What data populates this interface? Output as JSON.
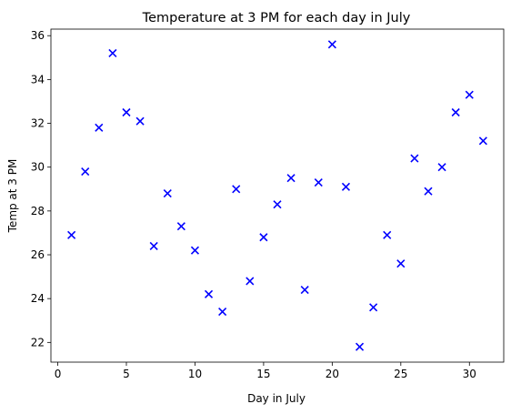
{
  "chart_data": {
    "type": "scatter",
    "title": "Temperature at 3 PM for each day in July",
    "xlabel": "Day in July",
    "ylabel": "Temp at 3 PM",
    "xlim": [
      -0.5,
      32.5
    ],
    "ylim": [
      21.1,
      36.3
    ],
    "xticks": [
      0,
      5,
      10,
      15,
      20,
      25,
      30
    ],
    "yticks": [
      22,
      24,
      26,
      28,
      30,
      32,
      34,
      36
    ],
    "marker": "x",
    "color": "#0000ff",
    "grid": false,
    "x": [
      1,
      2,
      3,
      4,
      5,
      6,
      7,
      8,
      9,
      10,
      11,
      12,
      13,
      14,
      15,
      16,
      17,
      18,
      19,
      20,
      21,
      22,
      23,
      24,
      25,
      26,
      27,
      28,
      29,
      30,
      31
    ],
    "y": [
      26.9,
      29.8,
      31.8,
      35.2,
      32.5,
      32.1,
      26.4,
      28.8,
      27.3,
      26.2,
      24.2,
      23.4,
      29.0,
      24.8,
      26.8,
      28.3,
      29.5,
      24.4,
      29.3,
      35.6,
      29.1,
      21.8,
      23.6,
      26.9,
      25.6,
      30.4,
      28.9,
      30.0,
      32.5,
      33.3,
      31.2
    ]
  }
}
